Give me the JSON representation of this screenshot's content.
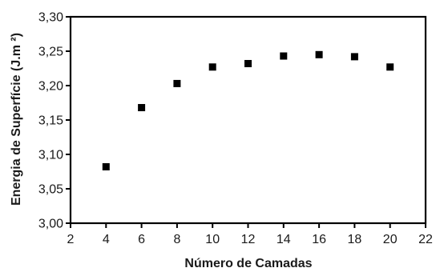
{
  "chart_data": {
    "type": "scatter",
    "title": "",
    "xlabel": "Número de Camadas",
    "ylabel": "Energia de Superfície (J.m ²)",
    "xlim": [
      2,
      22
    ],
    "ylim": [
      3.0,
      3.3
    ],
    "x_ticks": [
      2,
      4,
      6,
      8,
      10,
      12,
      14,
      16,
      18,
      20,
      22
    ],
    "x_tick_labels": [
      "2",
      "4",
      "6",
      "8",
      "10",
      "12",
      "14",
      "16",
      "18",
      "20",
      "22"
    ],
    "y_ticks": [
      3.0,
      3.05,
      3.1,
      3.15,
      3.2,
      3.25,
      3.3
    ],
    "y_tick_labels": [
      "3,00",
      "3,05",
      "3,10",
      "3,15",
      "3,20",
      "3,25",
      "3,30"
    ],
    "grid": false,
    "legend": "none",
    "marker": "square",
    "color": "#000000",
    "series": [
      {
        "x": [
          4,
          6,
          8,
          10,
          12,
          14,
          16,
          18,
          20
        ],
        "y": [
          3.082,
          3.168,
          3.203,
          3.227,
          3.232,
          3.243,
          3.245,
          3.242,
          3.227
        ]
      }
    ]
  }
}
